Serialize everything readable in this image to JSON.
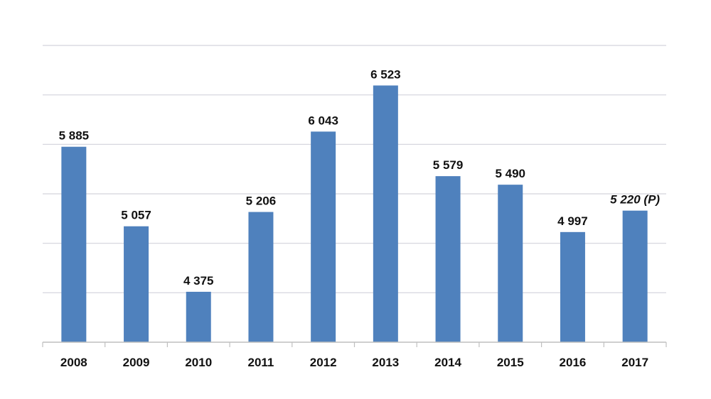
{
  "chart_data": {
    "type": "bar",
    "categories": [
      "2008",
      "2009",
      "2010",
      "2011",
      "2012",
      "2013",
      "2014",
      "2015",
      "2016",
      "2017"
    ],
    "values": [
      5885,
      5057,
      4375,
      5206,
      6043,
      6523,
      5579,
      5490,
      4997,
      5220
    ],
    "value_labels": [
      "5 885",
      "5 057",
      "4 375",
      "5 206",
      "6 043",
      "6 523",
      "5 579",
      "5 490",
      "4 997",
      "5 220 (P)"
    ],
    "italic_labels": [
      false,
      false,
      false,
      false,
      false,
      false,
      false,
      false,
      false,
      true
    ],
    "title": "",
    "xlabel": "",
    "ylabel": "",
    "ylim": [
      3850,
      6940
    ],
    "grid": true,
    "legend": "none",
    "bar_color": "#4f81bd",
    "grid_color": "#d3d3dc",
    "axis_color": "#bfbfbf"
  }
}
